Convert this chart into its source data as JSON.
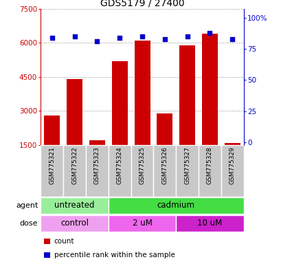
{
  "title": "GDS5179 / 27400",
  "samples": [
    "GSM775321",
    "GSM775322",
    "GSM775323",
    "GSM775324",
    "GSM775325",
    "GSM775326",
    "GSM775327",
    "GSM775328",
    "GSM775329"
  ],
  "counts": [
    2800,
    4400,
    1700,
    5200,
    6100,
    2900,
    5900,
    6400,
    1600
  ],
  "percentile_ranks": [
    84,
    85,
    81,
    84,
    85,
    83,
    85,
    88,
    83
  ],
  "ylim_left": [
    1500,
    7500
  ],
  "yticks_left": [
    1500,
    3000,
    4500,
    6000,
    7500
  ],
  "yticks_right": [
    0,
    25,
    50,
    75,
    100
  ],
  "bar_color": "#cc0000",
  "dot_color": "#0000cc",
  "bar_bottom": 1500,
  "agent_groups": [
    {
      "label": "untreated",
      "start": 0,
      "end": 3,
      "color": "#99ee99"
    },
    {
      "label": "cadmium",
      "start": 3,
      "end": 9,
      "color": "#44dd44"
    }
  ],
  "dose_groups": [
    {
      "label": "control",
      "start": 0,
      "end": 3,
      "color": "#f0a0f0"
    },
    {
      "label": "2 uM",
      "start": 3,
      "end": 6,
      "color": "#ee66ee"
    },
    {
      "label": "10 uM",
      "start": 6,
      "end": 9,
      "color": "#cc22cc"
    }
  ],
  "tick_color_left": "#cc0000",
  "tick_color_right": "#0000cc",
  "label_agent": "agent",
  "label_dose": "dose",
  "legend_count": "count",
  "legend_pct": "percentile rank within the sample",
  "xticklabel_bg": "#c8c8c8"
}
